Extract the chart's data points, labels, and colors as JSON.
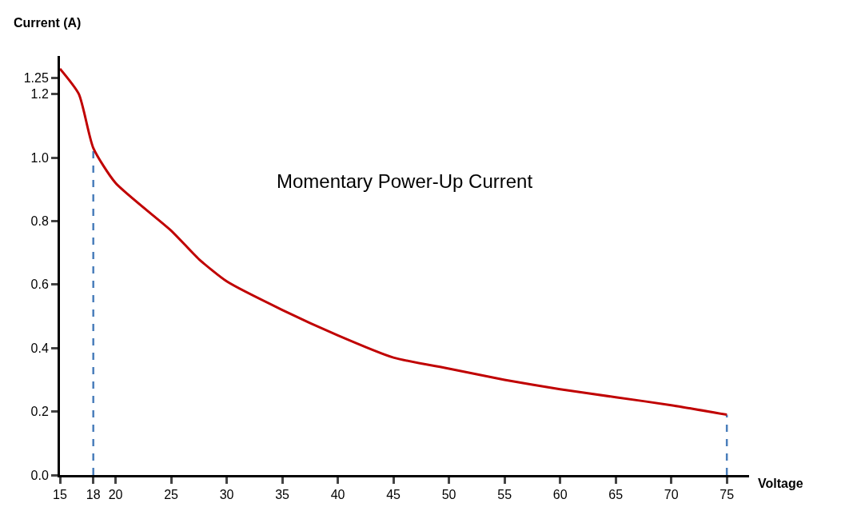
{
  "chart_data": {
    "type": "line",
    "xlabel": "Voltage",
    "ylabel": "Current (A)",
    "x": [
      15,
      16.7,
      18,
      20,
      25,
      27.5,
      30,
      35,
      40,
      45,
      50,
      55,
      60,
      65,
      70,
      75
    ],
    "series": [
      {
        "color": "#c00000",
        "values": [
          1.28,
          1.2,
          1.03,
          0.92,
          0.77,
          0.68,
          0.61,
          0.52,
          0.44,
          0.37,
          0.335,
          0.3,
          0.27,
          0.245,
          0.22,
          0.19
        ]
      }
    ],
    "xlim": [
      15,
      77
    ],
    "xticks": [
      15,
      18,
      20,
      25,
      30,
      35,
      40,
      45,
      50,
      55,
      60,
      65,
      70,
      75
    ],
    "ylim": [
      0,
      1.32
    ],
    "yticks": [
      {
        "value": 0,
        "label": "0.0"
      },
      0.2,
      0.4,
      0.6,
      0.8,
      {
        "value": 1,
        "label": "1.0"
      },
      1.2,
      1.25
    ],
    "ref_lines": [
      {
        "axis": "x",
        "value": 18,
        "color": "#4a7ebb",
        "line_style": "dashed"
      },
      {
        "axis": "x",
        "value": 75,
        "color": "#4a7ebb",
        "line_style": "dashed"
      }
    ],
    "annotations": [
      "Momentary Power-Up Current"
    ],
    "grid": false,
    "marker": "none",
    "line_style": "solid"
  }
}
